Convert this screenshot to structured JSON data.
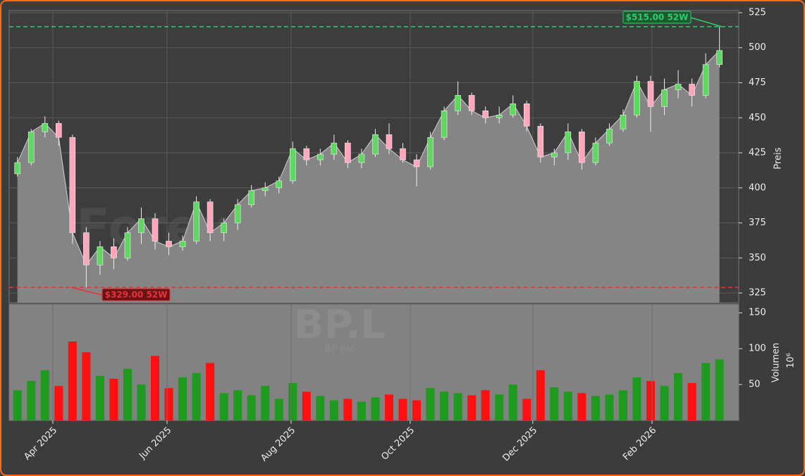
{
  "chart_data": [
    {
      "type": "candlestick",
      "y_label": "Preis",
      "watermark": "Forexsignale.trade",
      "x": [
        0,
        1,
        2,
        3,
        4,
        5,
        6,
        7,
        8,
        9,
        10,
        11,
        12,
        13,
        14,
        15,
        16,
        17,
        18,
        19,
        20,
        21,
        22,
        23,
        24,
        25,
        26,
        27,
        28,
        29,
        30,
        31,
        32,
        33,
        34,
        35,
        36,
        37,
        38,
        39,
        40,
        41,
        42,
        43,
        44,
        45,
        46,
        47,
        48,
        49,
        50,
        51
      ],
      "open": [
        410,
        418,
        440,
        446,
        436,
        368,
        345,
        358,
        350,
        368,
        378,
        362,
        358,
        362,
        390,
        368,
        375,
        388,
        398,
        400,
        405,
        428,
        420,
        424,
        432,
        418,
        424,
        438,
        428,
        420,
        415,
        436,
        455,
        466,
        455,
        450,
        452,
        460,
        444,
        422,
        425,
        440,
        418,
        432,
        442,
        452,
        476,
        458,
        470,
        474,
        466,
        488
      ],
      "high": [
        422,
        442,
        451,
        448,
        438,
        372,
        362,
        364,
        372,
        386,
        382,
        368,
        366,
        394,
        392,
        378,
        392,
        402,
        404,
        408,
        433,
        430,
        428,
        438,
        434,
        428,
        442,
        446,
        432,
        424,
        440,
        458,
        476,
        468,
        458,
        458,
        466,
        462,
        446,
        428,
        446,
        442,
        436,
        446,
        456,
        480,
        480,
        478,
        484,
        478,
        496,
        515
      ],
      "low": [
        408,
        416,
        436,
        430,
        360,
        329,
        338,
        342,
        348,
        360,
        356,
        352,
        355,
        360,
        362,
        362,
        370,
        386,
        394,
        396,
        403,
        416,
        416,
        420,
        414,
        414,
        422,
        424,
        418,
        401,
        413,
        434,
        452,
        452,
        446,
        446,
        450,
        440,
        418,
        416,
        420,
        413,
        416,
        430,
        440,
        450,
        440,
        452,
        464,
        458,
        464,
        486
      ],
      "close": [
        418,
        440,
        446,
        436,
        368,
        345,
        358,
        350,
        368,
        378,
        362,
        358,
        362,
        390,
        368,
        375,
        388,
        398,
        400,
        405,
        428,
        420,
        424,
        432,
        418,
        424,
        438,
        428,
        420,
        415,
        436,
        455,
        466,
        455,
        450,
        452,
        460,
        444,
        422,
        425,
        440,
        418,
        432,
        442,
        452,
        476,
        458,
        470,
        474,
        466,
        488,
        498
      ],
      "colors": {
        "up": "#5fd85f",
        "down": "#ffa6bb",
        "area": "#858585"
      },
      "xlim": [
        -0.6,
        52.4
      ],
      "ylim": [
        318,
        526.5
      ],
      "yticks": [
        325,
        350,
        375,
        400,
        425,
        450,
        475,
        500,
        525
      ],
      "grid": true,
      "annotations": [
        {
          "value": 515,
          "label": "$515.00 52W",
          "color": "#2ecc71"
        },
        {
          "value": 329,
          "label": "$329.00 52W",
          "color": "#e8333a"
        }
      ]
    },
    {
      "type": "bar",
      "y_label": "Volumen",
      "y_unit": "10⁶",
      "watermark": "BP.L",
      "subtitle": "BP plc",
      "x": [
        0,
        1,
        2,
        3,
        4,
        5,
        6,
        7,
        8,
        9,
        10,
        11,
        12,
        13,
        14,
        15,
        16,
        17,
        18,
        19,
        20,
        21,
        22,
        23,
        24,
        25,
        26,
        27,
        28,
        29,
        30,
        31,
        32,
        33,
        34,
        35,
        36,
        37,
        38,
        39,
        40,
        41,
        42,
        43,
        44,
        45,
        46,
        47,
        48,
        49,
        50,
        51
      ],
      "values": [
        42,
        55,
        70,
        48,
        110,
        95,
        62,
        58,
        72,
        50,
        90,
        45,
        60,
        66,
        80,
        38,
        42,
        35,
        48,
        30,
        52,
        40,
        34,
        28,
        30,
        26,
        32,
        36,
        30,
        28,
        45,
        40,
        38,
        35,
        42,
        36,
        50,
        30,
        70,
        46,
        40,
        38,
        34,
        36,
        42,
        60,
        55,
        48,
        66,
        52,
        80,
        85
      ],
      "colors": {
        "up": "#1e9a1e",
        "down": "#ff1010"
      },
      "xlim": [
        -0.6,
        52.4
      ],
      "ylim": [
        0,
        162
      ],
      "yticks": [
        50,
        100,
        150
      ],
      "xticks": [
        {
          "value": 2.57,
          "label": "Apr 2025"
        },
        {
          "value": 10.87,
          "label": "Jun 2025"
        },
        {
          "value": 19.88,
          "label": "Aug 2025"
        },
        {
          "value": 28.53,
          "label": "Oct 2025"
        },
        {
          "value": 37.44,
          "label": "Dec 2025"
        },
        {
          "value": 46.1,
          "label": "Feb 2026"
        }
      ]
    }
  ]
}
